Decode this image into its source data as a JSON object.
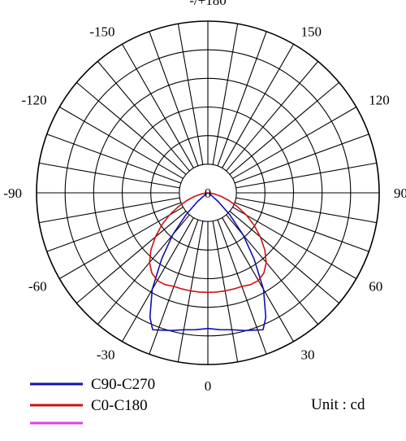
{
  "chart_data": {
    "type": "polar",
    "subtype": "luminous-intensity-distribution",
    "angle_labels": [
      "-/+180",
      "150",
      "120",
      "90",
      "60",
      "30",
      "0",
      "-30",
      "-60",
      "-90",
      "-120",
      "-150"
    ],
    "center_label": "0",
    "unit_label": "Unit : cd",
    "radial_rings": 6,
    "angular_grid_step_deg": 10,
    "series": [
      {
        "name": "C90-C270",
        "color": "#1010b0",
        "points": [
          [
            0,
            0.79
          ],
          [
            5,
            0.8
          ],
          [
            10,
            0.81
          ],
          [
            15,
            0.83
          ],
          [
            20,
            0.85
          ],
          [
            22,
            0.86
          ],
          [
            25,
            0.8
          ],
          [
            30,
            0.65
          ],
          [
            35,
            0.47
          ],
          [
            40,
            0.32
          ],
          [
            45,
            0.18
          ],
          [
            50,
            0.08
          ],
          [
            55,
            0.02
          ],
          [
            60,
            0
          ],
          [
            -60,
            0
          ],
          [
            -55,
            0.02
          ],
          [
            -50,
            0.08
          ],
          [
            -45,
            0.18
          ],
          [
            -40,
            0.32
          ],
          [
            -35,
            0.47
          ],
          [
            -30,
            0.65
          ],
          [
            -25,
            0.8
          ],
          [
            -22,
            0.86
          ],
          [
            -20,
            0.85
          ],
          [
            -15,
            0.83
          ],
          [
            -10,
            0.81
          ],
          [
            -5,
            0.8
          ],
          [
            0,
            0.79
          ]
        ]
      },
      {
        "name": "C0-C180",
        "color": "#d01010",
        "points": [
          [
            0,
            0.58
          ],
          [
            5,
            0.58
          ],
          [
            10,
            0.58
          ],
          [
            15,
            0.58
          ],
          [
            20,
            0.58
          ],
          [
            25,
            0.59
          ],
          [
            30,
            0.59
          ],
          [
            35,
            0.57
          ],
          [
            40,
            0.53
          ],
          [
            45,
            0.47
          ],
          [
            50,
            0.4
          ],
          [
            55,
            0.33
          ],
          [
            60,
            0.26
          ],
          [
            65,
            0.19
          ],
          [
            70,
            0.13
          ],
          [
            75,
            0.08
          ],
          [
            80,
            0.04
          ],
          [
            85,
            0.01
          ],
          [
            90,
            0
          ],
          [
            -90,
            0
          ],
          [
            -85,
            0.01
          ],
          [
            -80,
            0.04
          ],
          [
            -75,
            0.08
          ],
          [
            -70,
            0.13
          ],
          [
            -65,
            0.19
          ],
          [
            -60,
            0.26
          ],
          [
            -55,
            0.33
          ],
          [
            -50,
            0.4
          ],
          [
            -45,
            0.47
          ],
          [
            -40,
            0.53
          ],
          [
            -35,
            0.57
          ],
          [
            -30,
            0.59
          ],
          [
            -25,
            0.59
          ],
          [
            -20,
            0.58
          ],
          [
            -15,
            0.58
          ],
          [
            -10,
            0.58
          ],
          [
            -5,
            0.58
          ],
          [
            0,
            0.58
          ]
        ]
      },
      {
        "name": "",
        "color": "#e040e0",
        "points": []
      }
    ],
    "legend": [
      {
        "label": "C90-C270",
        "color": "#1010b0"
      },
      {
        "label": "C0-C180",
        "color": "#d01010"
      },
      {
        "label": "",
        "color": "#e040e0"
      }
    ]
  }
}
